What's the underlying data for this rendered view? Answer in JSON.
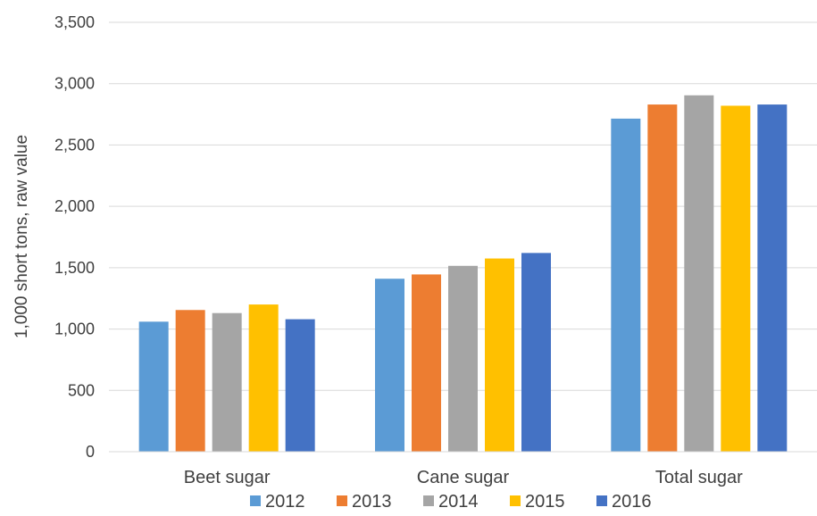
{
  "chart_data": {
    "type": "bar",
    "categories": [
      "Beet sugar",
      "Cane sugar",
      "Total sugar"
    ],
    "series": [
      {
        "name": "2012",
        "color": "#5B9BD5",
        "values": [
          1060,
          1410,
          2715
        ]
      },
      {
        "name": "2013",
        "color": "#ED7D31",
        "values": [
          1155,
          1445,
          2830
        ]
      },
      {
        "name": "2014",
        "color": "#A5A5A5",
        "values": [
          1130,
          1515,
          2905
        ]
      },
      {
        "name": "2015",
        "color": "#FFC000",
        "values": [
          1200,
          1575,
          2820
        ]
      },
      {
        "name": "2016",
        "color": "#4472C4",
        "values": [
          1080,
          1620,
          2830
        ]
      }
    ],
    "yticks": [
      0,
      500,
      1000,
      1500,
      2000,
      2500,
      3000,
      3500
    ],
    "ytick_labels": [
      "0",
      "500",
      "1,000",
      "1,500",
      "2,000",
      "2,500",
      "3,000",
      "3,500"
    ],
    "ylim": [
      0,
      3500
    ],
    "ylabel": "1,000  short tons, raw value",
    "xlabel": "",
    "title": "",
    "grid": "horizontal",
    "legend_position": "bottom"
  }
}
